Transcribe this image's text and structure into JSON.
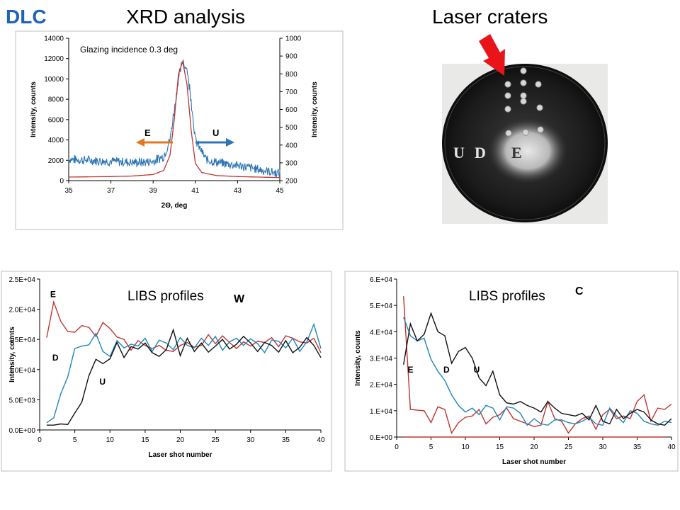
{
  "header": {
    "dlc": "DLC",
    "xrd_title": "XRD analysis",
    "laser_title": "Laser craters"
  },
  "crater_photo": {
    "labels": [
      "U",
      "D",
      "E"
    ],
    "arrow_color": "#e8141a"
  },
  "colors": {
    "blue": "#2e75b6",
    "red": "#c0342f",
    "black": "#111111",
    "teal": "#1f86b8",
    "orange": "#e07a1e"
  },
  "chart_data": [
    {
      "id": "xrd",
      "type": "line",
      "title": "",
      "annotation": "Glazing incidence 0.3 deg",
      "xlabel": "2Θ, deg",
      "ylabel_left": "Intensity, counts",
      "ylabel_right": "Intensity, counts",
      "xlim": [
        35,
        45
      ],
      "ylim_left": [
        0,
        14000
      ],
      "ylim_right": [
        200,
        1000
      ],
      "xticks": [
        35,
        37,
        39,
        41,
        43,
        45
      ],
      "yticks_left": [
        0,
        2000,
        4000,
        6000,
        8000,
        10000,
        12000,
        14000
      ],
      "yticks_right": [
        200,
        300,
        400,
        500,
        600,
        700,
        800,
        900,
        1000
      ],
      "arrows": [
        {
          "label": "E",
          "direction": "left",
          "color": "#e07a1e"
        },
        {
          "label": "U",
          "direction": "right",
          "color": "#2e75b6"
        }
      ],
      "series": [
        {
          "name": "",
          "axis": "left",
          "color": "#2e75b6",
          "noisy": true,
          "x": [
            35,
            36,
            37,
            38,
            38.5,
            39,
            39.5,
            39.8,
            40,
            40.2,
            40.4,
            40.6,
            40.8,
            41,
            41.5,
            42,
            43,
            44,
            45
          ],
          "y": [
            2100,
            2000,
            1900,
            1800,
            1800,
            1900,
            2400,
            4000,
            7000,
            10000,
            11800,
            11000,
            8000,
            4000,
            2100,
            1800,
            1500,
            1100,
            700
          ]
        },
        {
          "name": "",
          "axis": "left",
          "color": "#c0342f",
          "noisy": false,
          "x": [
            35,
            37,
            38,
            39,
            39.5,
            39.8,
            40,
            40.2,
            40.4,
            40.6,
            40.8,
            41,
            41.3,
            42,
            43,
            44,
            45
          ],
          "y": [
            350,
            400,
            450,
            600,
            1000,
            2500,
            6000,
            10500,
            11700,
            9500,
            5000,
            1700,
            800,
            500,
            400,
            350,
            300
          ]
        }
      ]
    },
    {
      "id": "libs-w",
      "type": "line",
      "title": "LIBS profiles",
      "element_label": "W",
      "xlabel": "Laser shot number",
      "ylabel": "Intensity, counts",
      "xlim": [
        0,
        40
      ],
      "ylim": [
        0,
        25000
      ],
      "xticks": [
        0,
        5,
        10,
        15,
        20,
        25,
        30,
        35,
        40
      ],
      "yticks": [
        0,
        5000,
        10000,
        15000,
        20000,
        25000
      ],
      "yticklabels": [
        "0.0E+00",
        "5.0E+03",
        "1.0E+04",
        "1.5E+04",
        "2.0E+04",
        "2.5E+04"
      ],
      "series_labels": [
        {
          "text": "E",
          "x": 1.5,
          "y": 22000
        },
        {
          "text": "D",
          "x": 1.8,
          "y": 11500
        },
        {
          "text": "U",
          "x": 8.5,
          "y": 7500
        }
      ],
      "series": [
        {
          "name": "E",
          "color": "#c0342f",
          "y": [
            15300,
            21200,
            18000,
            16300,
            16200,
            17300,
            17000,
            15500,
            17800,
            16800,
            15400,
            15000,
            13200,
            14800,
            14000,
            13500,
            14000,
            13200,
            13000,
            14000,
            14500,
            13700,
            14000,
            15800,
            14300,
            15600,
            14500,
            13500,
            14600,
            13900,
            14700,
            14500,
            15300,
            13800,
            15600,
            15200,
            14600,
            14400,
            15200,
            12800
          ]
        },
        {
          "name": "D",
          "color": "#1f86b8",
          "y": [
            1200,
            2000,
            6000,
            8800,
            13500,
            13900,
            14100,
            16000,
            13000,
            12200,
            14800,
            13600,
            14200,
            13900,
            15200,
            13000,
            14900,
            14400,
            13300,
            15300,
            14000,
            13600,
            15200,
            14000,
            15500,
            13200,
            14600,
            15200,
            14000,
            15100,
            14300,
            12800,
            14900,
            14700,
            13600,
            15200,
            13000,
            14600,
            17500,
            13500
          ]
        },
        {
          "name": "U",
          "color": "#111111",
          "y": [
            800,
            800,
            1000,
            900,
            2800,
            4600,
            9000,
            11700,
            11000,
            11800,
            14500,
            12000,
            13800,
            13400,
            14400,
            12800,
            12200,
            13300,
            16600,
            12300,
            15200,
            13000,
            14400,
            12900,
            13900,
            15000,
            13400,
            14200,
            15500,
            14400,
            13000,
            14500,
            14000,
            12900,
            14800,
            12800,
            13700,
            15300,
            14000,
            12000
          ]
        }
      ]
    },
    {
      "id": "libs-c",
      "type": "line",
      "title": "LIBS profiles",
      "element_label": "C",
      "xlabel": "Laser shot number",
      "ylabel": "Intensity, counts",
      "xlim": [
        0,
        40
      ],
      "ylim": [
        0,
        60000
      ],
      "xticks": [
        0,
        5,
        10,
        15,
        20,
        25,
        30,
        35,
        40
      ],
      "yticks": [
        0,
        10000,
        20000,
        30000,
        40000,
        50000,
        60000
      ],
      "yticklabels": [
        "0.E+00",
        "1.E+04",
        "2.E+04",
        "3.E+04",
        "4.E+04",
        "5.E+04",
        "6.E+04"
      ],
      "series_labels": [
        {
          "text": "E",
          "x": 1.6,
          "y": 24500
        },
        {
          "text": "D",
          "x": 6.8,
          "y": 24500
        },
        {
          "text": "U",
          "x": 11.2,
          "y": 24500
        }
      ],
      "series": [
        {
          "name": "E",
          "color": "#c0342f",
          "y": [
            53500,
            10500,
            10200,
            10000,
            5500,
            11500,
            10500,
            1500,
            5500,
            7500,
            8000,
            10500,
            5000,
            7500,
            8500,
            11000,
            7000,
            6000,
            5000,
            4000,
            4500,
            13500,
            7000,
            6000,
            1500,
            5000,
            7000,
            8000,
            3000,
            8500,
            10500,
            7000,
            8000,
            7000,
            13500,
            16000,
            6000,
            11000,
            10500,
            12500
          ]
        },
        {
          "name": "D",
          "color": "#1f86b8",
          "y": [
            45500,
            38500,
            36500,
            37500,
            29500,
            25000,
            21500,
            16000,
            12000,
            9500,
            11000,
            8500,
            12000,
            11000,
            6500,
            11500,
            11000,
            9000,
            4500,
            7000,
            5000,
            4500,
            6500,
            6500,
            5500,
            5000,
            6000,
            7500,
            5000,
            4500,
            11000,
            8000,
            5500,
            10000,
            9000,
            6000,
            5000,
            4500,
            6000,
            5500
          ]
        },
        {
          "name": "U",
          "color": "#111111",
          "y": [
            27500,
            43000,
            36500,
            39000,
            47000,
            40000,
            38500,
            28000,
            32500,
            34000,
            30000,
            22500,
            19500,
            25000,
            16000,
            13000,
            12500,
            13500,
            12000,
            11000,
            9500,
            13500,
            11000,
            9000,
            8500,
            8000,
            9000,
            6500,
            12000,
            6000,
            5000,
            10500,
            7000,
            9000,
            10500,
            9500,
            6500,
            5000,
            4500,
            7000
          ]
        },
        {
          "name": "",
          "color": "#c0342f",
          "flat": true,
          "y": [
            0,
            0,
            0,
            0,
            0,
            0,
            0,
            0,
            0,
            0,
            0,
            0,
            0,
            0,
            0,
            0,
            0,
            0,
            0,
            0,
            0,
            0,
            0,
            0,
            0,
            0,
            0,
            0,
            0,
            0,
            0,
            0,
            0,
            0,
            0,
            0,
            0,
            0,
            0
          ]
        }
      ]
    }
  ]
}
